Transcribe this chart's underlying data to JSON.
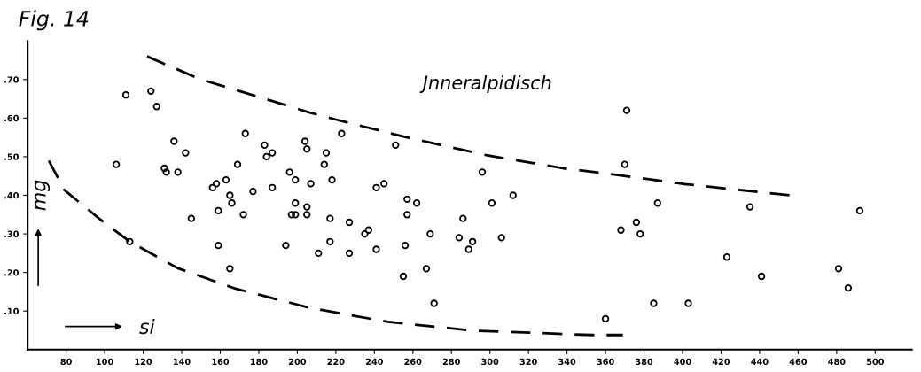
{
  "chart_data": {
    "type": "scatter",
    "title": "Fig. 14",
    "xlabel": "si",
    "ylabel": "mg",
    "annotations": [
      "Jnneralpidisch"
    ],
    "xlim": [
      60,
      519
    ],
    "ylim": [
      0,
      0.8
    ],
    "xticks": [
      80,
      100,
      120,
      140,
      160,
      180,
      200,
      220,
      240,
      260,
      280,
      300,
      320,
      340,
      360,
      380,
      400,
      420,
      440,
      460,
      480,
      500
    ],
    "yticks": [
      {
        "value": 0.1,
        "label": ".10"
      },
      {
        "value": 0.2,
        "label": ".20"
      },
      {
        "value": 0.3,
        "label": ".30"
      },
      {
        "value": 0.4,
        "label": ".40"
      },
      {
        "value": 0.5,
        "label": ".50"
      },
      {
        "value": 0.6,
        "label": ".60"
      },
      {
        "value": 0.7,
        "label": ".70"
      }
    ],
    "grid": false,
    "legend": false,
    "series": [
      {
        "color": "#000000",
        "marker": "circle",
        "x": [
          106,
          111,
          124,
          127,
          113,
          136,
          142,
          131,
          132,
          138,
          145,
          156,
          158,
          163,
          159,
          159,
          165,
          166,
          165,
          169,
          173,
          172,
          177,
          183,
          184,
          187,
          187,
          194,
          196,
          199,
          199,
          197,
          199,
          204,
          205,
          205,
          205,
          207,
          223,
          215,
          214,
          218,
          217,
          217,
          211,
          227,
          227,
          235,
          237,
          241,
          241,
          245,
          251,
          257,
          262,
          257,
          256,
          255,
          269,
          267,
          271,
          286,
          284,
          291,
          289,
          296,
          301,
          306,
          312,
          360,
          371,
          370,
          368,
          376,
          378,
          387,
          385,
          403,
          423,
          435,
          441,
          481,
          486,
          492
        ],
        "values": [
          0.48,
          0.66,
          0.67,
          0.63,
          0.28,
          0.54,
          0.51,
          0.47,
          0.46,
          0.46,
          0.34,
          0.42,
          0.43,
          0.44,
          0.36,
          0.27,
          0.4,
          0.38,
          0.21,
          0.48,
          0.56,
          0.35,
          0.41,
          0.53,
          0.5,
          0.51,
          0.42,
          0.27,
          0.46,
          0.44,
          0.38,
          0.35,
          0.35,
          0.54,
          0.52,
          0.37,
          0.35,
          0.43,
          0.56,
          0.51,
          0.48,
          0.44,
          0.34,
          0.28,
          0.25,
          0.33,
          0.25,
          0.3,
          0.31,
          0.26,
          0.42,
          0.43,
          0.53,
          0.39,
          0.38,
          0.35,
          0.27,
          0.19,
          0.3,
          0.21,
          0.12,
          0.34,
          0.29,
          0.28,
          0.26,
          0.46,
          0.38,
          0.29,
          0.4,
          0.08,
          0.62,
          0.48,
          0.31,
          0.33,
          0.3,
          0.38,
          0.12,
          0.12,
          0.24,
          0.37,
          0.19,
          0.21,
          0.16,
          0.36
        ]
      },
      {
        "type": "line",
        "color": "#000000",
        "line_style": "dashed",
        "marker": "none",
        "x": [
          122,
          150,
          180,
          206,
          221,
          257,
          298,
          338,
          360,
          401,
          456
        ],
        "values": [
          0.76,
          0.7,
          0.655,
          0.615,
          0.595,
          0.55,
          0.504,
          0.47,
          0.457,
          0.429,
          0.4
        ]
      },
      {
        "type": "line",
        "color": "#000000",
        "line_style": "dashed",
        "marker": "none",
        "x": [
          71,
          79,
          97,
          113,
          138,
          168,
          206,
          247,
          292,
          353,
          369
        ],
        "values": [
          0.49,
          0.414,
          0.34,
          0.28,
          0.211,
          0.158,
          0.109,
          0.072,
          0.049,
          0.038,
          0.038
        ]
      }
    ]
  }
}
